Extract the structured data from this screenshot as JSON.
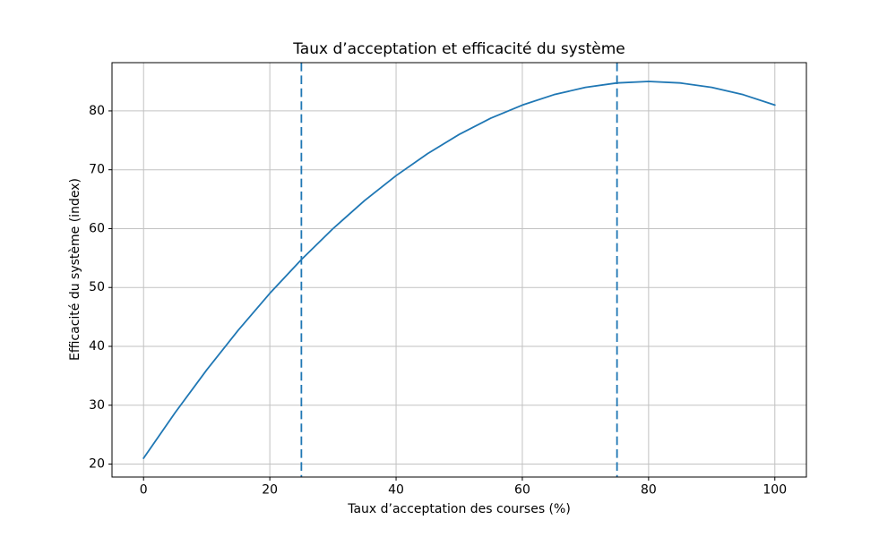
{
  "chart_data": {
    "type": "line",
    "title": "Taux d’acceptation et efficacité du système",
    "xlabel": "Taux d’acceptation des courses (%)",
    "ylabel": "Efficacité du système (index)",
    "xlim": [
      -5,
      105
    ],
    "ylim": [
      17.8,
      88.2
    ],
    "xticks": [
      0,
      20,
      40,
      60,
      80,
      100
    ],
    "yticks": [
      20,
      30,
      40,
      50,
      60,
      70,
      80
    ],
    "grid": true,
    "legend": "none",
    "series": [
      {
        "name": "efficacite",
        "color": "#1f77b4",
        "style": "solid",
        "linewidth": 1.8,
        "x": [
          0,
          5,
          10,
          15,
          20,
          25,
          30,
          35,
          40,
          45,
          50,
          55,
          60,
          65,
          70,
          75,
          80,
          85,
          90,
          95,
          100
        ],
        "y": [
          21,
          28.75,
          36,
          42.75,
          49,
          54.75,
          60,
          64.75,
          69,
          72.75,
          76,
          78.75,
          81,
          82.75,
          84,
          84.75,
          85,
          84.75,
          84,
          82.75,
          81
        ]
      }
    ],
    "vlines": [
      {
        "x": 25,
        "color": "#1f77b4",
        "style": "dashed"
      },
      {
        "x": 75,
        "color": "#1f77b4",
        "style": "dashed"
      }
    ],
    "colors": {
      "line": "#1f77b4",
      "grid": "#c2c2c2",
      "spine": "#000000",
      "tick_label": "#000000",
      "background": "#ffffff"
    }
  }
}
